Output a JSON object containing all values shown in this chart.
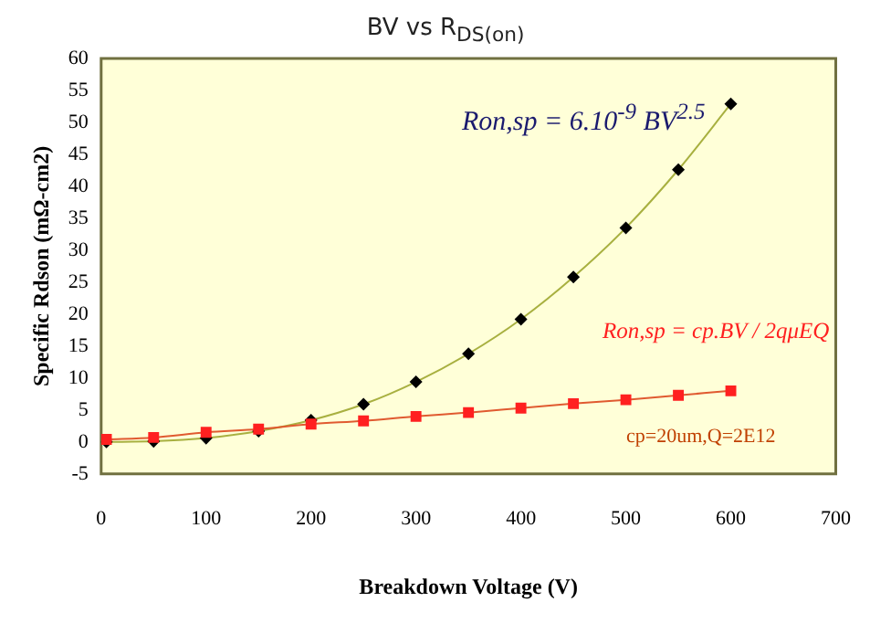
{
  "chart_data": {
    "type": "line",
    "title": "BV vs R$_{DS(on)}$",
    "xlabel": "Breakdown Voltage (V)",
    "ylabel": "Specific Rdson (mΩ-cm2)",
    "x": [
      5,
      50,
      100,
      150,
      200,
      250,
      300,
      350,
      400,
      450,
      500,
      550,
      600
    ],
    "series": [
      {
        "color": "#000000",
        "marker": "diamond",
        "values": [
          0,
          0.1,
          0.6,
          1.7,
          3.4,
          5.9,
          9.4,
          13.8,
          19.2,
          25.8,
          33.5,
          42.6,
          52.9
        ]
      },
      {
        "color": "#ff2020",
        "marker": "square",
        "values": [
          0.4,
          0.7,
          1.5,
          2.0,
          2.8,
          3.3,
          4.0,
          4.6,
          5.3,
          6.0,
          6.6,
          7.3,
          8.0
        ]
      }
    ],
    "xlim": [
      0,
      700
    ],
    "xticks": [
      0,
      100,
      200,
      300,
      400,
      500,
      600,
      700
    ],
    "ylim": [
      -5,
      60
    ],
    "yticks": [
      -5,
      0,
      5,
      10,
      15,
      20,
      25,
      30,
      35,
      40,
      45,
      50,
      55,
      60
    ],
    "grid": false,
    "legend": false,
    "annotations": [
      "Ron,sp = 6.10$^{-9}$ BV$^{2.5}$",
      "Ron,sp = cp.BV / 2qμEQ",
      "cp=20um,Q=2E12"
    ]
  }
}
